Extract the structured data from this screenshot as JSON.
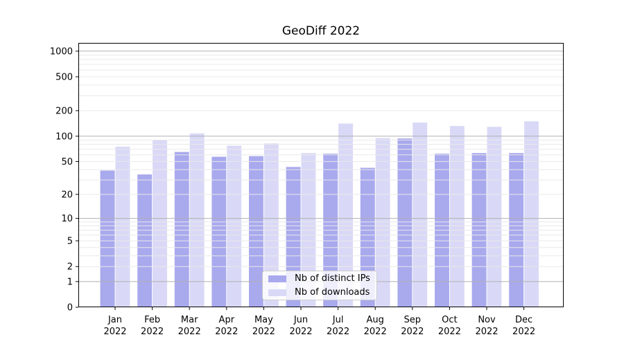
{
  "chart_data": {
    "type": "bar",
    "title": "GeoDiff 2022",
    "months": [
      "Jan",
      "Feb",
      "Mar",
      "Apr",
      "May",
      "Jun",
      "Jul",
      "Aug",
      "Sep",
      "Oct",
      "Nov",
      "Dec"
    ],
    "year": "2022",
    "series": [
      {
        "name": "Nb of distinct IPs",
        "color": "#a9a9ee",
        "values": [
          39,
          35,
          65,
          57,
          58,
          43,
          62,
          42,
          94,
          62,
          63,
          63
        ]
      },
      {
        "name": "Nb of downloads",
        "color": "#d9d9f7",
        "values": [
          75,
          90,
          108,
          77,
          82,
          63,
          141,
          95,
          145,
          132,
          129,
          150
        ]
      }
    ],
    "yscale": "log1p",
    "y_ticks": [
      0,
      1,
      2,
      5,
      10,
      20,
      50,
      100,
      200,
      500,
      1000
    ],
    "ylim": [
      0,
      1250
    ],
    "grid": true,
    "legend_position": "lower-center",
    "colors": {
      "major_grid": "#b0b0b0",
      "minor_grid": "#e9e9e9",
      "spine": "#000000",
      "tick_text": "#000000",
      "legend_border": "#cccccc"
    }
  }
}
